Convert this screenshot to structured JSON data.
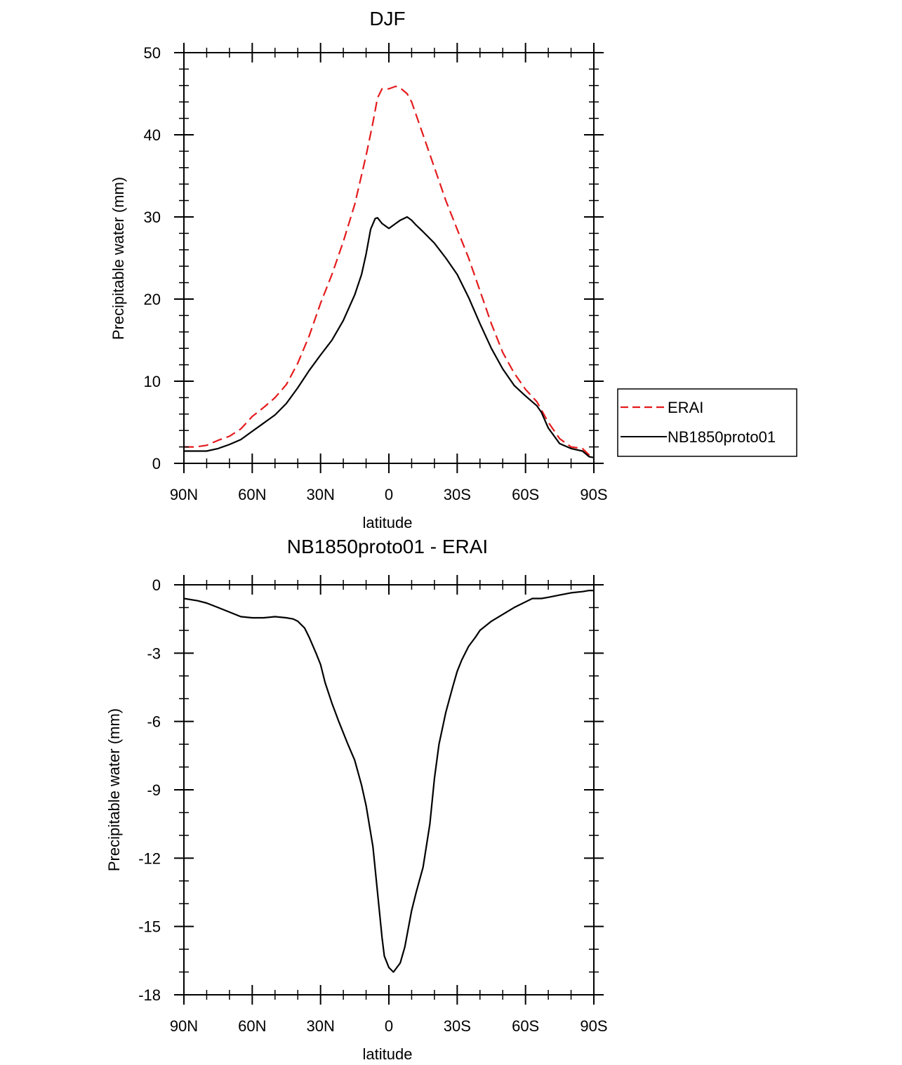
{
  "chart_data": [
    {
      "type": "line",
      "title": "DJF",
      "xlabel": "latitude",
      "ylabel": "Precipitable water (mm)",
      "xlim": [
        90,
        -90
      ],
      "ylim": [
        0,
        50
      ],
      "xticks": [
        90,
        60,
        30,
        0,
        -30,
        -60,
        -90
      ],
      "xtick_labels": [
        "90N",
        "60N",
        "30N",
        "0",
        "30S",
        "60S",
        "90S"
      ],
      "yticks": [
        0,
        10,
        20,
        30,
        40,
        50
      ],
      "ytick_labels": [
        "0",
        "10",
        "20",
        "30",
        "40",
        "50"
      ],
      "legend": {
        "position": "right",
        "entries": [
          "ERAI",
          "NB1850proto01"
        ]
      },
      "series": [
        {
          "name": "ERAI",
          "color": "#e41a1c",
          "style": "dashed",
          "x": [
            90,
            85,
            80,
            75,
            70,
            65,
            60,
            55,
            50,
            45,
            40,
            35,
            30,
            25,
            20,
            15,
            10,
            7,
            5,
            3,
            0,
            -3,
            -5,
            -8,
            -10,
            -15,
            -20,
            -25,
            -30,
            -35,
            -40,
            -45,
            -50,
            -55,
            -60,
            -65,
            -67,
            -70,
            -75,
            -80,
            -85,
            -88,
            -90
          ],
          "values": [
            2.0,
            2.0,
            2.2,
            2.8,
            3.3,
            4.2,
            5.7,
            6.8,
            8.0,
            9.6,
            12.2,
            15.5,
            19.5,
            23.0,
            27.0,
            31.5,
            37.5,
            41.5,
            44.5,
            45.6,
            45.6,
            45.9,
            45.7,
            45.0,
            44.0,
            40.0,
            36.0,
            32.0,
            28.5,
            25.0,
            21.0,
            17.0,
            13.5,
            11.0,
            9.0,
            7.5,
            6.5,
            5.0,
            3.0,
            2.0,
            1.8,
            1.0,
            0.8
          ]
        },
        {
          "name": "NB1850proto01",
          "color": "#000000",
          "style": "solid",
          "x": [
            90,
            85,
            80,
            75,
            70,
            65,
            60,
            55,
            50,
            45,
            40,
            35,
            30,
            25,
            20,
            15,
            12,
            10,
            8,
            6,
            5,
            3,
            0,
            -3,
            -5,
            -8,
            -10,
            -12,
            -15,
            -20,
            -25,
            -30,
            -35,
            -40,
            -45,
            -50,
            -55,
            -60,
            -65,
            -67,
            -70,
            -75,
            -80,
            -85,
            -88,
            -90
          ],
          "values": [
            1.5,
            1.5,
            1.5,
            1.8,
            2.3,
            2.9,
            3.9,
            4.9,
            5.9,
            7.3,
            9.2,
            11.3,
            13.2,
            15.0,
            17.4,
            20.5,
            23.0,
            25.5,
            28.5,
            29.8,
            29.9,
            29.2,
            28.6,
            29.2,
            29.6,
            30.0,
            29.6,
            29.0,
            28.2,
            26.8,
            25.0,
            23.0,
            20.2,
            17.0,
            14.0,
            11.5,
            9.5,
            8.2,
            7.0,
            6.2,
            4.3,
            2.4,
            1.8,
            1.5,
            0.8,
            0.7
          ]
        }
      ]
    },
    {
      "type": "line",
      "title": "NB1850proto01 - ERAI",
      "xlabel": "latitude",
      "ylabel": "Precipitable water (mm)",
      "xlim": [
        90,
        -90
      ],
      "ylim": [
        -18,
        0
      ],
      "xticks": [
        90,
        60,
        30,
        0,
        -30,
        -60,
        -90
      ],
      "xtick_labels": [
        "90N",
        "60N",
        "30N",
        "0",
        "30S",
        "60S",
        "90S"
      ],
      "yticks": [
        0,
        -3,
        -6,
        -9,
        -12,
        -15,
        -18
      ],
      "ytick_labels": [
        "0",
        "-3",
        "-6",
        "-9",
        "-12",
        "-15",
        "-18"
      ],
      "series": [
        {
          "name": "NB1850proto01 - ERAI",
          "color": "#000000",
          "style": "solid",
          "x": [
            90,
            84,
            80,
            75,
            70,
            65,
            60,
            55,
            50,
            45,
            42,
            40,
            37,
            35,
            32,
            30,
            28,
            25,
            22,
            20,
            18,
            15,
            12,
            10,
            7,
            5,
            3,
            2,
            0,
            -2,
            -5,
            -7,
            -10,
            -12,
            -15,
            -18,
            -20,
            -22,
            -25,
            -28,
            -30,
            -32,
            -35,
            -38,
            -40,
            -45,
            -50,
            -55,
            -60,
            -63,
            -65,
            -67,
            -70,
            -75,
            -80,
            -85,
            -88,
            -90
          ],
          "values": [
            -0.6,
            -0.7,
            -0.8,
            -1.0,
            -1.2,
            -1.4,
            -1.45,
            -1.45,
            -1.4,
            -1.45,
            -1.5,
            -1.6,
            -1.9,
            -2.3,
            -3.0,
            -3.5,
            -4.3,
            -5.2,
            -6.0,
            -6.5,
            -7.0,
            -7.7,
            -8.8,
            -9.7,
            -11.5,
            -13.5,
            -15.5,
            -16.3,
            -16.8,
            -17.0,
            -16.6,
            -15.9,
            -14.3,
            -13.5,
            -12.4,
            -10.5,
            -8.5,
            -7.0,
            -5.6,
            -4.5,
            -3.8,
            -3.3,
            -2.7,
            -2.3,
            -2.0,
            -1.6,
            -1.3,
            -1.0,
            -0.75,
            -0.6,
            -0.6,
            -0.6,
            -0.55,
            -0.45,
            -0.35,
            -0.3,
            -0.25,
            -0.25
          ]
        }
      ]
    }
  ]
}
